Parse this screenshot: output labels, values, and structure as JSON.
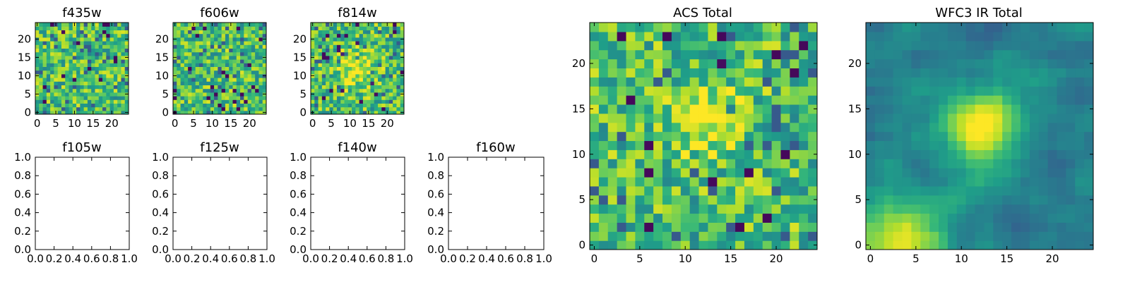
{
  "chart_data": [
    {
      "id": "f435w",
      "type": "heatmap",
      "title": "f435w",
      "grid_size": 25,
      "colormap": "viridis",
      "seed": 11,
      "blob": null,
      "xlim": [
        -0.5,
        24.5
      ],
      "ylim": [
        -0.5,
        24.5
      ],
      "xticks": [
        0,
        5,
        10,
        15,
        20
      ],
      "yticks": [
        0,
        5,
        10,
        15,
        20
      ],
      "xtick_labels": [
        "0",
        "5",
        "10",
        "15",
        "20"
      ],
      "ytick_labels": [
        "0",
        "5",
        "10",
        "15",
        "20"
      ]
    },
    {
      "id": "f606w",
      "type": "heatmap",
      "title": "f606w",
      "grid_size": 25,
      "colormap": "viridis",
      "seed": 23,
      "blob": null,
      "xlim": [
        -0.5,
        24.5
      ],
      "ylim": [
        -0.5,
        24.5
      ],
      "xticks": [
        0,
        5,
        10,
        15,
        20
      ],
      "yticks": [
        0,
        5,
        10,
        15,
        20
      ],
      "xtick_labels": [
        "0",
        "5",
        "10",
        "15",
        "20"
      ],
      "ytick_labels": [
        "0",
        "5",
        "10",
        "15",
        "20"
      ]
    },
    {
      "id": "f814w",
      "type": "heatmap",
      "title": "f814w",
      "grid_size": 25,
      "colormap": "viridis",
      "seed": 37,
      "blob": {
        "cx": 12,
        "cy": 12,
        "sigma": 3.5,
        "amp": 0.25
      },
      "xlim": [
        -0.5,
        24.5
      ],
      "ylim": [
        -0.5,
        24.5
      ],
      "xticks": [
        0,
        5,
        10,
        15,
        20
      ],
      "yticks": [
        0,
        5,
        10,
        15,
        20
      ],
      "xtick_labels": [
        "0",
        "5",
        "10",
        "15",
        "20"
      ],
      "ytick_labels": [
        "0",
        "5",
        "10",
        "15",
        "20"
      ]
    },
    {
      "id": "f105w",
      "type": "empty",
      "title": "f105w",
      "xlim": [
        0,
        1
      ],
      "ylim": [
        0,
        1
      ],
      "xticks": [
        0,
        0.2,
        0.4,
        0.6,
        0.8,
        1.0
      ],
      "yticks": [
        0,
        0.2,
        0.4,
        0.6,
        0.8,
        1.0
      ],
      "xtick_labels": [
        "0.0",
        "0.2",
        "0.4",
        "0.6",
        "0.8",
        "1.0"
      ],
      "ytick_labels": [
        "0.0",
        "0.2",
        "0.4",
        "0.6",
        "0.8",
        "1.0"
      ]
    },
    {
      "id": "f125w",
      "type": "empty",
      "title": "f125w",
      "xlim": [
        0,
        1
      ],
      "ylim": [
        0,
        1
      ],
      "xticks": [
        0,
        0.2,
        0.4,
        0.6,
        0.8,
        1.0
      ],
      "yticks": [
        0,
        0.2,
        0.4,
        0.6,
        0.8,
        1.0
      ],
      "xtick_labels": [
        "0.0",
        "0.2",
        "0.4",
        "0.6",
        "0.8",
        "1.0"
      ],
      "ytick_labels": [
        "0.0",
        "0.2",
        "0.4",
        "0.6",
        "0.8",
        "1.0"
      ]
    },
    {
      "id": "f140w",
      "type": "empty",
      "title": "f140w",
      "xlim": [
        0,
        1
      ],
      "ylim": [
        0,
        1
      ],
      "xticks": [
        0,
        0.2,
        0.4,
        0.6,
        0.8,
        1.0
      ],
      "yticks": [
        0,
        0.2,
        0.4,
        0.6,
        0.8,
        1.0
      ],
      "xtick_labels": [
        "0.0",
        "0.2",
        "0.4",
        "0.6",
        "0.8",
        "1.0"
      ],
      "ytick_labels": [
        "0.0",
        "0.2",
        "0.4",
        "0.6",
        "0.8",
        "1.0"
      ]
    },
    {
      "id": "f160w",
      "type": "empty",
      "title": "f160w",
      "xlim": [
        0,
        1
      ],
      "ylim": [
        0,
        1
      ],
      "xticks": [
        0,
        0.2,
        0.4,
        0.6,
        0.8,
        1.0
      ],
      "yticks": [
        0,
        0.2,
        0.4,
        0.6,
        0.8,
        1.0
      ],
      "xtick_labels": [
        "0.0",
        "0.2",
        "0.4",
        "0.6",
        "0.8",
        "1.0"
      ],
      "ytick_labels": [
        "0.0",
        "0.2",
        "0.4",
        "0.6",
        "0.8",
        "1.0"
      ]
    },
    {
      "id": "acs-total",
      "type": "heatmap",
      "title": "ACS Total",
      "grid_size": 25,
      "colormap": "viridis",
      "seed": 53,
      "blob": {
        "cx": 12.5,
        "cy": 14,
        "sigma": 2.5,
        "amp": 0.3
      },
      "xlim": [
        -0.5,
        24.5
      ],
      "ylim": [
        -0.5,
        24.5
      ],
      "xticks": [
        0,
        5,
        10,
        15,
        20
      ],
      "yticks": [
        0,
        5,
        10,
        15,
        20
      ],
      "xtick_labels": [
        "0",
        "5",
        "10",
        "15",
        "20"
      ],
      "ytick_labels": [
        "0",
        "5",
        "10",
        "15",
        "20"
      ]
    },
    {
      "id": "wfc3-ir-total",
      "type": "heatmap",
      "title": "WFC3 IR Total",
      "grid_size": 25,
      "colormap": "viridis",
      "seed": 71,
      "smooth": true,
      "blob": {
        "cx": 12.5,
        "cy": 13,
        "sigma": 3,
        "amp": 0.6
      },
      "blob2": {
        "cx": 3,
        "cy": 0,
        "sigma": 4,
        "amp": 0.5
      },
      "xlim": [
        -0.5,
        24.5
      ],
      "ylim": [
        -0.5,
        24.5
      ],
      "xticks": [
        0,
        5,
        10,
        15,
        20
      ],
      "yticks": [
        0,
        5,
        10,
        15,
        20
      ],
      "xtick_labels": [
        "0",
        "5",
        "10",
        "15",
        "20"
      ],
      "ytick_labels": [
        "0",
        "5",
        "10",
        "15",
        "20"
      ]
    }
  ]
}
